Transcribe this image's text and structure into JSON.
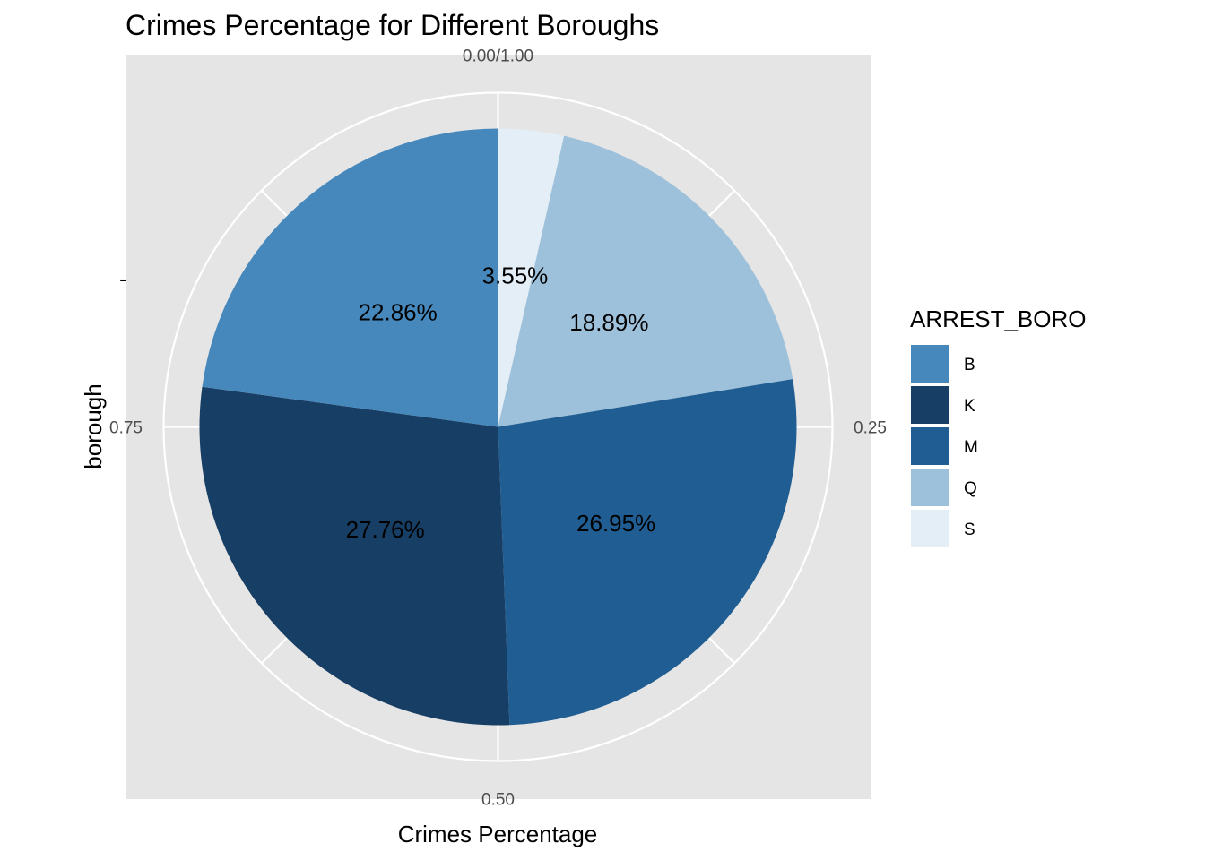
{
  "chart_data": {
    "type": "pie",
    "title": "Crimes Percentage for Different Boroughs",
    "xlabel": "Crimes Percentage",
    "ylabel": "borough",
    "y_tick": "-",
    "legend_title": "ARREST_BORO",
    "legend_position": "right",
    "theta_ticks": [
      "0.00/1.00",
      "0.25",
      "0.50",
      "0.75"
    ],
    "slices": [
      {
        "category": "S",
        "value": 3.55,
        "label": "3.55%",
        "color": "#e4eef6"
      },
      {
        "category": "Q",
        "value": 18.89,
        "label": "18.89%",
        "color": "#9dc0db"
      },
      {
        "category": "M",
        "value": 26.95,
        "label": "26.95%",
        "color": "#1f5d92"
      },
      {
        "category": "K",
        "value": 27.76,
        "label": "27.76%",
        "color": "#173e64"
      },
      {
        "category": "B",
        "value": 22.86,
        "label": "22.86%",
        "color": "#4688bc"
      }
    ],
    "legend": [
      {
        "label": "B",
        "color": "#4688bc"
      },
      {
        "label": "K",
        "color": "#173e64"
      },
      {
        "label": "M",
        "color": "#1f5d92"
      },
      {
        "label": "Q",
        "color": "#9dc0db"
      },
      {
        "label": "S",
        "color": "#e4eef6"
      }
    ],
    "panel_background": "#e5e5e5",
    "grid": true
  }
}
